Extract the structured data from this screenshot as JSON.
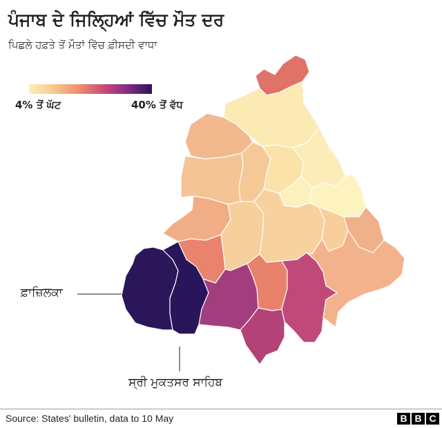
{
  "title": "ਪੰਜਾਬ ਦੇ ਜਿਲ੍ਹਿਆਂ ਵਿੱਚ ਮੌਤ ਦਰ",
  "subtitle": "ਪਿਛਲੇ ਹਫ਼ਤੇ ਤੋਂ ਮੌਤਾਂ ਵਿੱਚ ਫ਼ੀਸਦੀ ਵਾਧਾ",
  "legend": {
    "min_label": "4% ਤੋਂ ਘੱਟ",
    "max_label": "40% ਤੋਂ ਵੱਧ",
    "colors": [
      "#fcefb5",
      "#f7c98f",
      "#ef8f6e",
      "#c7477a",
      "#7c2a84",
      "#2a1457"
    ]
  },
  "callouts": {
    "fazilka": "ਫ਼ਾਜ਼ਿਲਕਾ",
    "muktsar": "ਸ੍ਰੀ ਮੁਕਤਸਰ ਸਾਹਿਬ"
  },
  "district_colors": {
    "pathankot": "#e07368",
    "gurdaspur": "#fbeab3",
    "amritsar": "#f2b98f",
    "tarn_taran": "#f4c494",
    "kapurthala": "#f5c997",
    "jalandhar": "#fae2a9",
    "hoshiarpur": "#fcedb8",
    "nawanshahr": "#fcf0bb",
    "rupnagar": "#fdf3bf",
    "ferozepur": "#f1ae86",
    "faridkot": "#e9836d",
    "moga": "#f7cf9c",
    "ludhiana": "#f7d19e",
    "fatehgarh_sahib": "#f8cf9b",
    "sas_nagar": "#f0b08a",
    "fazilka": "#2b1659",
    "muktsar": "#29165a",
    "bathinda": "#a33e7e",
    "mansa": "#b34279",
    "barnala": "#e8826a",
    "sangrur": "#c0497a",
    "patiala": "#f2b38c"
  },
  "footer": {
    "source": "Source: States' bulletin, data to 10 May",
    "logo_letters": [
      "B",
      "B",
      "C"
    ]
  }
}
